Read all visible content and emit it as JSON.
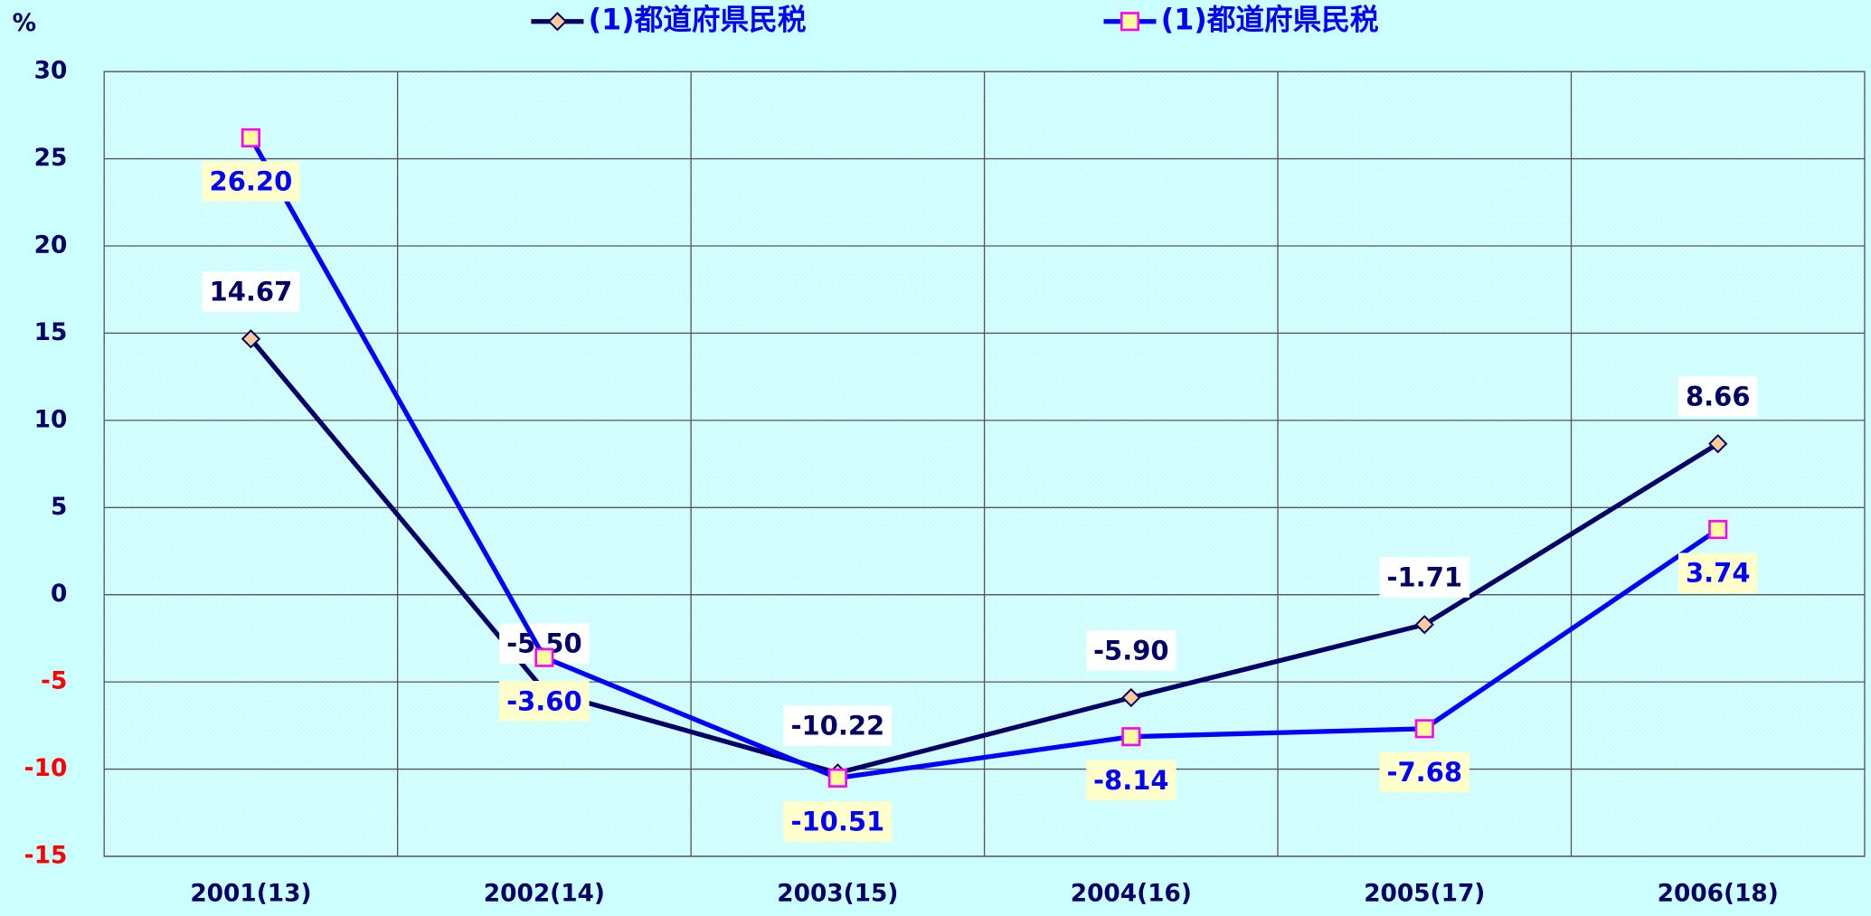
{
  "chart_data": {
    "type": "line",
    "y_label": "%",
    "categories": [
      "2001(13)",
      "2002(14)",
      "2003(15)",
      "2004(16)",
      "2005(17)",
      "2006(18)"
    ],
    "series": [
      {
        "name": "(1)都道府県民税",
        "color": "#000066",
        "marker": "diamond",
        "marker_color": "#ffcc99",
        "marker_edge": "#000066",
        "label_background": "#ffffff",
        "label_color": "#000066",
        "values": [
          14.67,
          -5.5,
          -10.22,
          -5.9,
          -1.71,
          8.66
        ],
        "value_labels": [
          "14.67",
          "-5.50",
          "-10.22",
          "-5.90",
          "-1.71",
          "8.66"
        ]
      },
      {
        "name": "(1)都道府県民税",
        "color": "#0000ff",
        "marker": "square",
        "marker_color": "#ffff99",
        "marker_edge": "#ff00ff",
        "label_background": "#ffffcc",
        "label_color": "#0000ff",
        "values": [
          26.2,
          -3.6,
          -10.51,
          -8.14,
          -7.68,
          3.74
        ],
        "value_labels": [
          "26.20",
          "-3.60",
          "-10.51",
          "-8.14",
          "-7.68",
          "3.74"
        ]
      }
    ],
    "ylim": [
      -15,
      30
    ],
    "yticks": [
      -15,
      -10,
      -5,
      0,
      5,
      10,
      15,
      20,
      25,
      30
    ],
    "negative_tick_color": "#ff0000",
    "tick_color": "#000066",
    "grid": true
  }
}
